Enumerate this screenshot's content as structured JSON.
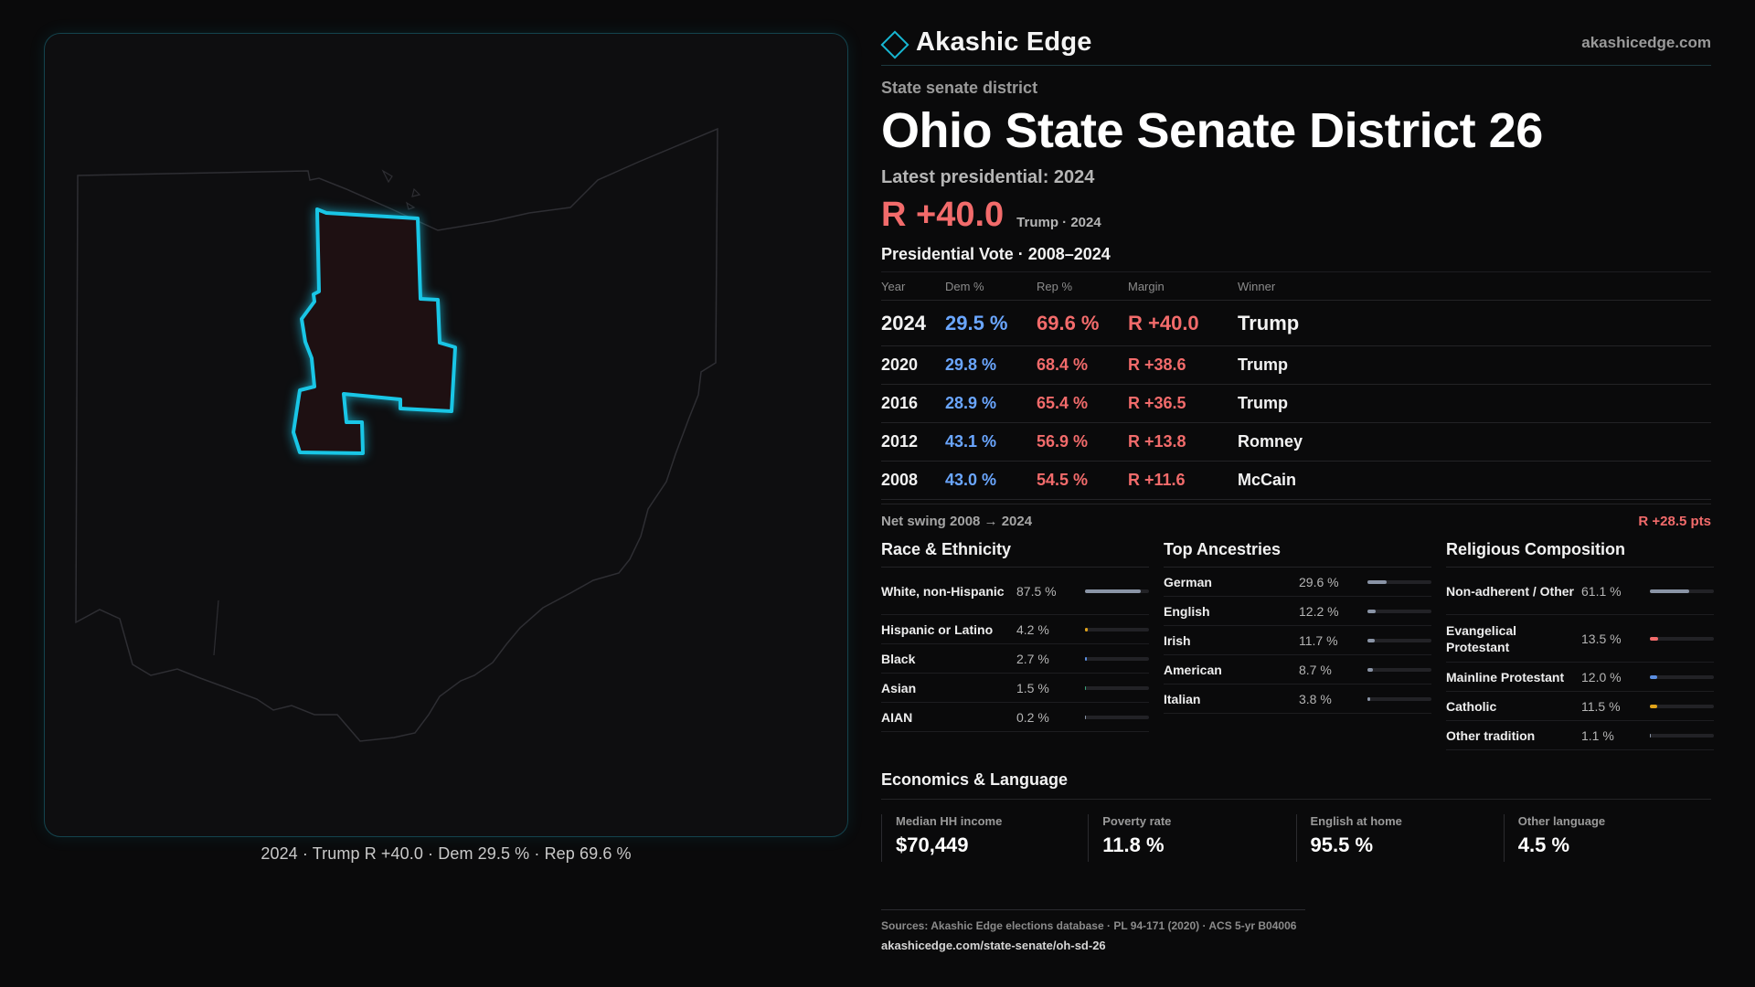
{
  "brand": {
    "name": "Akashic Edge",
    "url": "akashicedge.com"
  },
  "header": {
    "kicker": "State senate district",
    "title": "Ohio State Senate District 26",
    "latest_label": "Latest presidential: 2024",
    "margin": "R +40.0",
    "margin_sub": "Trump · 2024"
  },
  "votes": {
    "section_title": "Presidential Vote · 2008–2024",
    "headers": {
      "year": "Year",
      "dem": "Dem %",
      "rep": "Rep %",
      "margin": "Margin",
      "winner": "Winner"
    },
    "rows": [
      {
        "year": "2024",
        "dem": "29.5 %",
        "rep": "69.6 %",
        "margin": "R +40.0",
        "winner": "Trump"
      },
      {
        "year": "2020",
        "dem": "29.8 %",
        "rep": "68.4 %",
        "margin": "R +38.6",
        "winner": "Trump"
      },
      {
        "year": "2016",
        "dem": "28.9 %",
        "rep": "65.4 %",
        "margin": "R +36.5",
        "winner": "Trump"
      },
      {
        "year": "2012",
        "dem": "43.1 %",
        "rep": "56.9 %",
        "margin": "R +13.8",
        "winner": "Romney"
      },
      {
        "year": "2008",
        "dem": "43.0 %",
        "rep": "54.5 %",
        "margin": "R +11.6",
        "winner": "McCain"
      }
    ],
    "swing_label": "Net swing 2008 → 2024",
    "swing_value": "R +28.5 pts"
  },
  "race": {
    "title": "Race & Ethnicity",
    "rows": [
      {
        "label": "White, non-Hispanic",
        "value": "87.5 %",
        "pct": 87.5,
        "color": "#8a94a6"
      },
      {
        "label": "Hispanic or Latino",
        "value": "4.2 %",
        "pct": 4.2,
        "color": "#e0a31a"
      },
      {
        "label": "Black",
        "value": "2.7 %",
        "pct": 2.7,
        "color": "#5b8ee0"
      },
      {
        "label": "Asian",
        "value": "1.5 %",
        "pct": 1.5,
        "color": "#3aa57a"
      },
      {
        "label": "AIAN",
        "value": "0.2 %",
        "pct": 0.2,
        "color": "#8a94a6"
      }
    ]
  },
  "ancestry": {
    "title": "Top Ancestries",
    "rows": [
      {
        "label": "German",
        "value": "29.6 %",
        "pct": 29.6,
        "color": "#8a94a6"
      },
      {
        "label": "English",
        "value": "12.2 %",
        "pct": 12.2,
        "color": "#8a94a6"
      },
      {
        "label": "Irish",
        "value": "11.7 %",
        "pct": 11.7,
        "color": "#8a94a6"
      },
      {
        "label": "American",
        "value": "8.7 %",
        "pct": 8.7,
        "color": "#8a94a6"
      },
      {
        "label": "Italian",
        "value": "3.8 %",
        "pct": 3.8,
        "color": "#8a94a6"
      }
    ]
  },
  "religion": {
    "title": "Religious Composition",
    "rows": [
      {
        "label": "Non-adherent / Other",
        "value": "61.1 %",
        "pct": 61.1,
        "color": "#8a94a6"
      },
      {
        "label": "Evangelical Protestant",
        "value": "13.5 %",
        "pct": 13.5,
        "color": "#f26b6b"
      },
      {
        "label": "Mainline Protestant",
        "value": "12.0 %",
        "pct": 12.0,
        "color": "#5b8ee0"
      },
      {
        "label": "Catholic",
        "value": "11.5 %",
        "pct": 11.5,
        "color": "#e0a31a"
      },
      {
        "label": "Other tradition",
        "value": "1.1 %",
        "pct": 1.1,
        "color": "#8a94a6"
      }
    ]
  },
  "economics": {
    "title": "Economics & Language",
    "cells": [
      {
        "label": "Median HH income",
        "value": "$70,449"
      },
      {
        "label": "Poverty rate",
        "value": "11.8 %"
      },
      {
        "label": "English at home",
        "value": "95.5 %"
      },
      {
        "label": "Other language",
        "value": "4.5 %"
      }
    ]
  },
  "map": {
    "caption": "2024 · Trump R +40.0 · Dem 29.5 % · Rep 69.6 %",
    "colors": {
      "outline": "#2e2e33",
      "district_stroke": "#19c6e6",
      "district_fill": "#1e1012"
    }
  },
  "footer": {
    "sources": "Sources: Akashic Edge elections database · PL 94-171 (2020) · ACS 5-yr B04006",
    "url": "akashicedge.com/state-senate/oh-sd-26"
  }
}
